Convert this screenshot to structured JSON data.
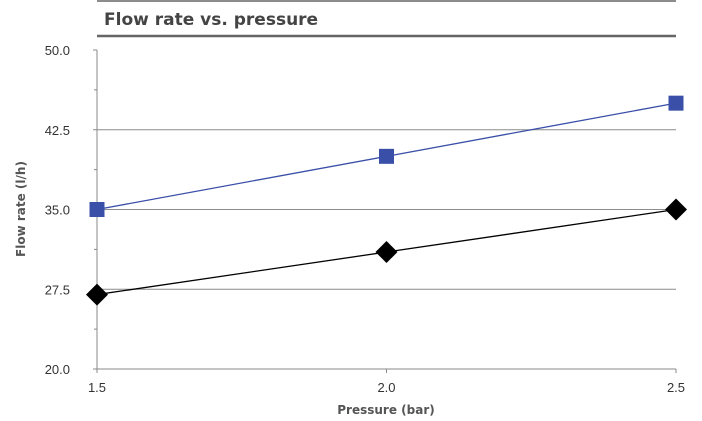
{
  "chart_data": {
    "type": "line",
    "title": "Flow rate vs. pressure",
    "xlabel": "Pressure (bar)",
    "ylabel": "Flow rate (l/h)",
    "x": [
      1.5,
      2.0,
      2.5
    ],
    "x_tick_labels": [
      "1.5",
      "2.0",
      "2.5"
    ],
    "xlim": [
      1.5,
      2.5
    ],
    "ylim": [
      20,
      50
    ],
    "y_tick_labels": [
      "20.0",
      "27.5",
      "35.0",
      "42.5",
      "50.0"
    ],
    "grid": "horizontal",
    "legend": "none",
    "series": [
      {
        "values": [
          35,
          40,
          45
        ],
        "color": "#3A4FA8",
        "marker": "square"
      },
      {
        "values": [
          27,
          31,
          35
        ],
        "color": "#000000",
        "marker": "diamond"
      }
    ]
  }
}
